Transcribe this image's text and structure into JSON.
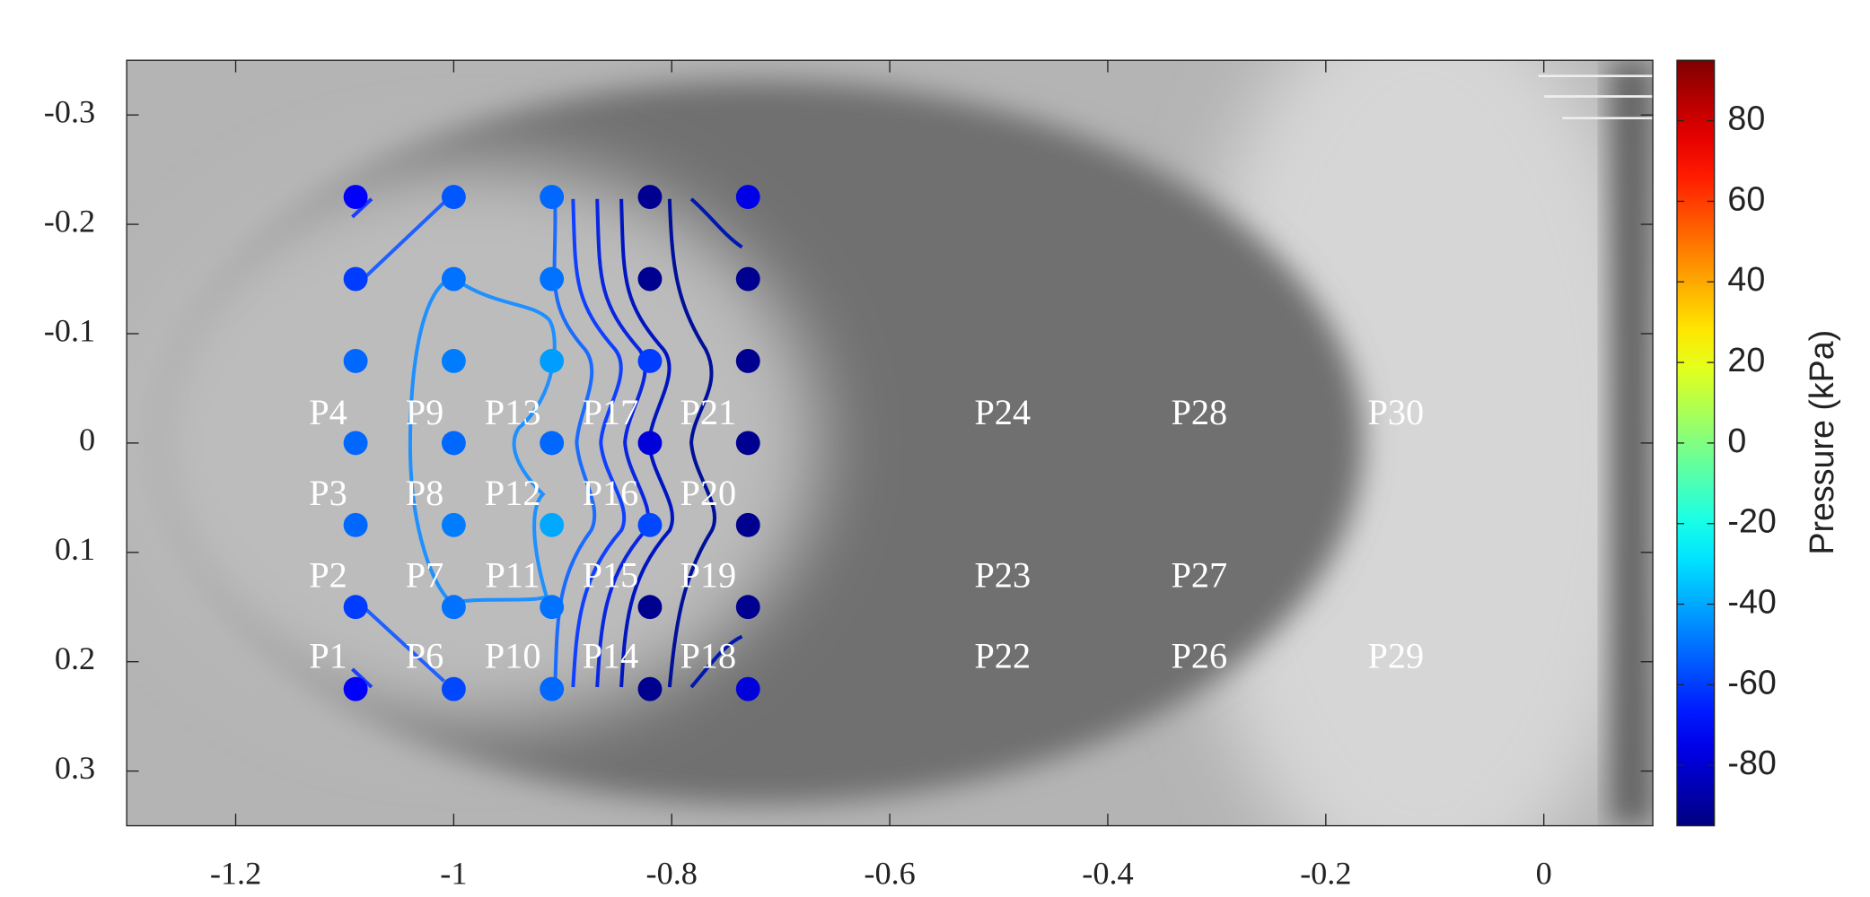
{
  "chart_data": {
    "type": "scatter",
    "x": [
      -1.09,
      -1.09,
      -1.09,
      -1.09,
      -1.09,
      -1.09,
      -1.09,
      -1.0,
      -1.0,
      -1.0,
      -1.0,
      -1.0,
      -1.0,
      -1.0,
      -0.91,
      -0.91,
      -0.91,
      -0.91,
      -0.91,
      -0.91,
      -0.91,
      -0.82,
      -0.82,
      -0.82,
      -0.82,
      -0.82,
      -0.82,
      -0.82,
      -0.73,
      -0.73,
      -0.73,
      -0.73,
      -0.73,
      -0.73,
      -0.73
    ],
    "y": [
      -0.225,
      -0.15,
      -0.075,
      0,
      0.075,
      0.15,
      0.225,
      -0.225,
      -0.15,
      -0.075,
      0,
      0.075,
      0.15,
      0.225,
      -0.225,
      -0.15,
      -0.075,
      0,
      0.075,
      0.15,
      0.225,
      -0.225,
      -0.15,
      -0.075,
      0,
      0.075,
      0.15,
      0.225,
      -0.225,
      -0.15,
      -0.075,
      0,
      0.075,
      0.15,
      0.225
    ],
    "values": [
      -72,
      -60,
      -52,
      -52,
      -52,
      -60,
      -72,
      -55,
      -50,
      -48,
      -52,
      -48,
      -50,
      -58,
      -52,
      -50,
      -42,
      -52,
      -40,
      -50,
      -52,
      -92,
      -92,
      -60,
      -78,
      -58,
      -92,
      -92,
      -76,
      -92,
      -92,
      -92,
      -92,
      -92,
      -78
    ],
    "xlim": [
      -1.3,
      0.1
    ],
    "xticks": [
      -1.2,
      -1,
      -0.8,
      -0.6,
      -0.4,
      -0.2,
      0
    ],
    "ylim": [
      -0.35,
      0.35
    ],
    "yticks": [
      -0.3,
      -0.2,
      -0.1,
      0,
      0.1,
      0.2,
      0.3
    ],
    "y_reverse": true,
    "colorbar": {
      "label": "Pressure (kPa)",
      "colormap": "jet",
      "lim": [
        -95,
        95
      ],
      "ticks": [
        -80,
        -60,
        -40,
        -20,
        0,
        20,
        40,
        60,
        80
      ]
    },
    "annotations": [
      "P1",
      "P2",
      "P3",
      "P4",
      "P6",
      "P7",
      "P8",
      "P9",
      "P10",
      "P11",
      "P12",
      "P13",
      "P14",
      "P15",
      "P16",
      "P17",
      "P18",
      "P19",
      "P20",
      "P21",
      "P22",
      "P23",
      "P24",
      "P26",
      "P27",
      "P28",
      "P29",
      "P30"
    ]
  }
}
